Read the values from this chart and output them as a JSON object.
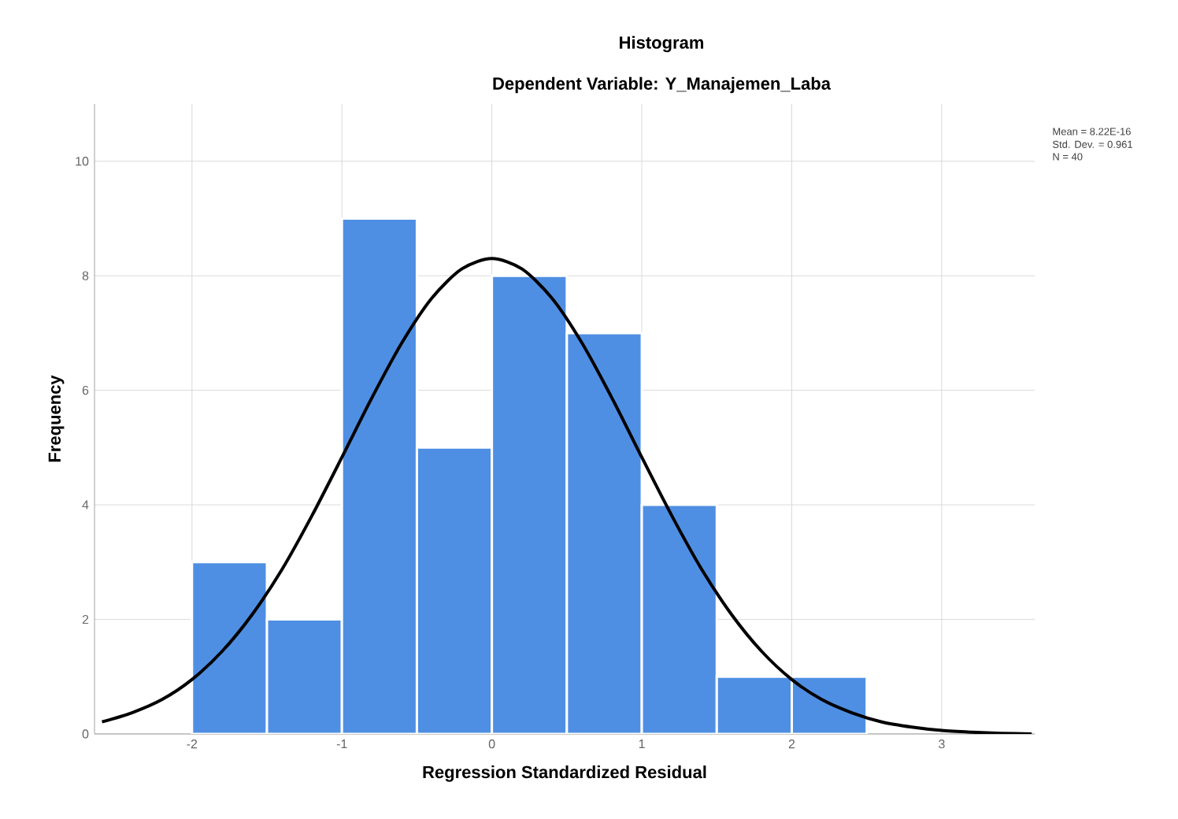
{
  "chart_data": {
    "type": "histogram",
    "title": "Histogram",
    "subtitle": "Dependent Variable: Y_Manajemen_Laba",
    "xlabel": "Regression Standardized Residual",
    "ylabel": "Frequency",
    "annotations": [
      "Mean = 8.22E-16",
      "Std. Dev. = 0.961",
      "N = 40"
    ],
    "series": [
      {
        "color": "#4f8fe3",
        "bins": [
          -2,
          -1.5,
          -1,
          -0.5,
          0,
          0.5,
          1,
          1.5,
          2,
          2.5
        ],
        "values": [
          3,
          2,
          9,
          5,
          8,
          7,
          4,
          1,
          1
        ]
      },
      {
        "type": "line",
        "color": "#000000",
        "x": [
          -2.6,
          -2.4,
          -2.2,
          -2.0,
          -1.8,
          -1.6,
          -1.4,
          -1.2,
          -1.0,
          -0.8,
          -0.6,
          -0.4,
          -0.2,
          0,
          0.2,
          0.4,
          0.6,
          0.8,
          1.0,
          1.2,
          1.4,
          1.6,
          1.8,
          2.0,
          2.2,
          2.4,
          2.6,
          2.8,
          3.0,
          3.2,
          3.4,
          3.6
        ],
        "values": [
          0.21,
          0.37,
          0.6,
          0.95,
          1.44,
          2.08,
          2.87,
          3.81,
          4.83,
          5.87,
          6.83,
          7.61,
          8.12,
          8.3,
          8.12,
          7.61,
          6.83,
          5.87,
          4.83,
          3.81,
          2.87,
          2.08,
          1.44,
          0.95,
          0.6,
          0.37,
          0.21,
          0.12,
          0.06,
          0.03,
          0.01,
          0.0
        ]
      }
    ],
    "xlim": [
      -2.65,
      3.62
    ],
    "ylim": [
      0,
      11
    ],
    "xticks": [
      -2,
      -1,
      0,
      1,
      2,
      3
    ],
    "yticks": [
      0,
      2,
      4,
      6,
      8,
      10
    ],
    "grid": true
  }
}
